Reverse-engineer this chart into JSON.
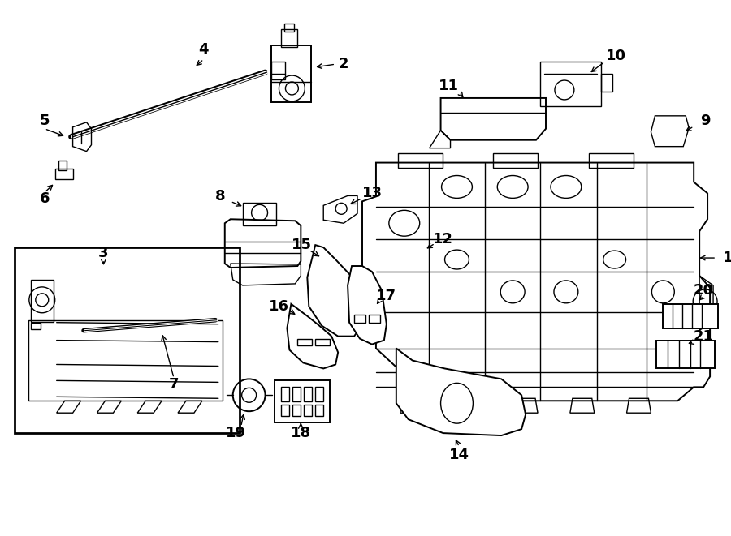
{
  "bg_color": "#ffffff",
  "line_color": "#000000",
  "text_color": "#000000",
  "fig_width": 9.0,
  "fig_height": 6.61
}
